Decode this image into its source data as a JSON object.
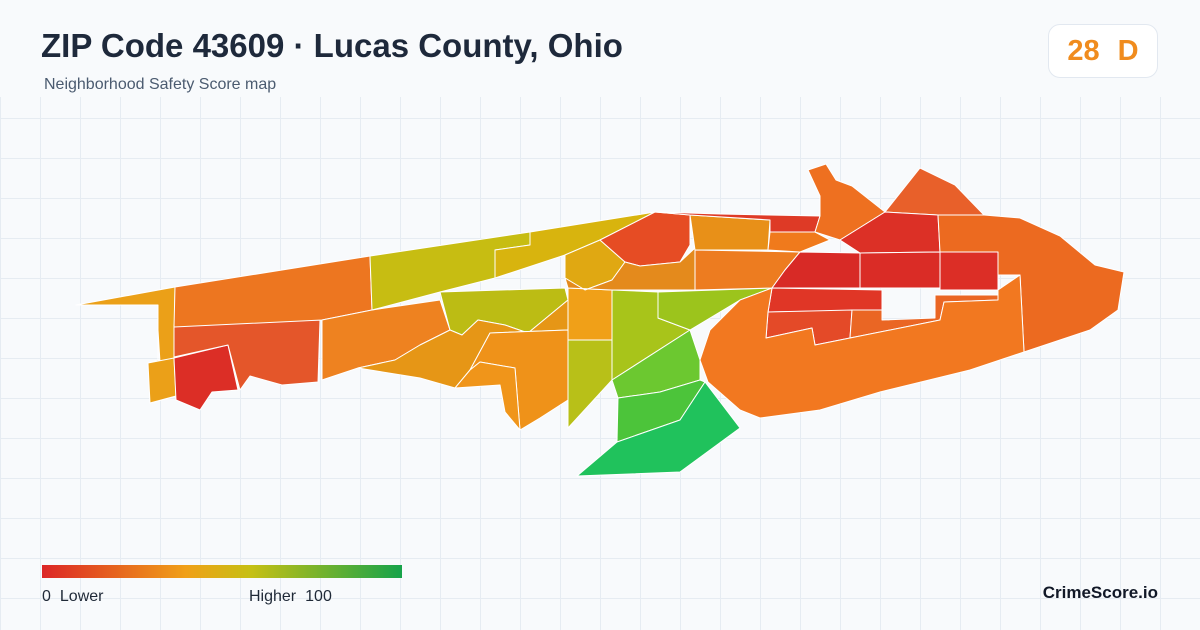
{
  "header": {
    "title": "ZIP Code 43609 · Lucas County, Ohio",
    "subtitle": "Neighborhood Safety Score map"
  },
  "score": {
    "value": "28",
    "grade": "D",
    "color": "#f08c1e"
  },
  "legend": {
    "low_value": "0",
    "low_label": "Lower",
    "high_label": "Higher",
    "high_value": "100",
    "colors": [
      "#dc2626",
      "#f0a018",
      "#c6c014",
      "#16a34a"
    ]
  },
  "brand": "CrimeScore.io"
}
